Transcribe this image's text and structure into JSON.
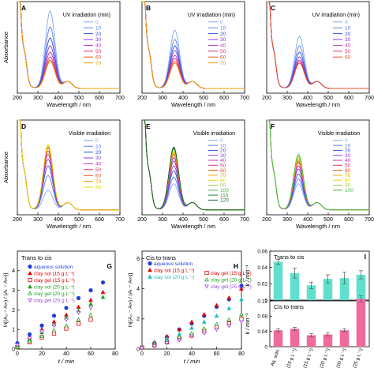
{
  "figure": {
    "row_legend_titles": [
      "UV irradiation (min)",
      "Visible irradiation"
    ],
    "axis_labels": {
      "absorbance": "Absorbance",
      "wavelength": "Wavelength / nm",
      "ln_y": "ln[(A₀ − A∞) / (Aₜ − A∞)]",
      "time": "t / min",
      "rate": "k / min⁻¹"
    },
    "bar_categories": [
      "Aq. soln.",
      "Sol (15 g L⁻¹)",
      "Gel (15 g L⁻¹)",
      "Sol (20 g L⁻¹)",
      "Gel (20 g L⁻¹)",
      "Gel (25 g L⁻¹)"
    ]
  },
  "chart_data": [
    {
      "panel": "A",
      "type": "line",
      "xlabel": "Wavelength / nm",
      "ylabel": "Absorbance",
      "xlim": [
        200,
        700
      ],
      "xticks": [
        200,
        300,
        400,
        500,
        600,
        700
      ],
      "legend_title": "UV irradiation (min)",
      "legend": [
        "0",
        "10",
        "20",
        "30",
        "40",
        "50",
        "60",
        "70"
      ],
      "series_colors": [
        "#80a8f0",
        "#5a7ef0",
        "#3050d8",
        "#8a3ae0",
        "#c030b8",
        "#e03070",
        "#e85020",
        "#f0a000"
      ],
      "peak_nm": 360,
      "peak_heights": [
        0.49,
        0.39,
        0.32,
        0.27,
        0.23,
        0.2,
        0.18,
        0.17
      ]
    },
    {
      "panel": "B",
      "type": "line",
      "xlabel": "Wavelength / nm",
      "ylabel": "",
      "xlim": [
        200,
        700
      ],
      "xticks": [
        200,
        300,
        400,
        500,
        600,
        700
      ],
      "legend_title": "UV irradiation (min)",
      "legend": [
        "0",
        "10",
        "20",
        "30",
        "40",
        "50",
        "60",
        "70"
      ],
      "series_colors": [
        "#80a8f0",
        "#5a7ef0",
        "#3050d8",
        "#8a3ae0",
        "#c030b8",
        "#e03070",
        "#e85020",
        "#f0a000"
      ],
      "peak_nm": 360,
      "peak_heights": [
        0.37,
        0.31,
        0.27,
        0.24,
        0.21,
        0.19,
        0.17,
        0.16
      ]
    },
    {
      "panel": "C",
      "type": "line",
      "xlabel": "Wavelength / nm",
      "ylabel": "",
      "xlim": [
        200,
        700
      ],
      "xticks": [
        200,
        300,
        400,
        500,
        600,
        700
      ],
      "legend_title": "UV irradiation (min)",
      "legend": [
        "0",
        "10",
        "20",
        "30",
        "40",
        "50",
        "60"
      ],
      "series_colors": [
        "#80a8f0",
        "#5a7ef0",
        "#3050d8",
        "#8a3ae0",
        "#c030b8",
        "#e03070",
        "#e85020"
      ],
      "peak_nm": 360,
      "peak_heights": [
        0.33,
        0.27,
        0.23,
        0.2,
        0.18,
        0.17,
        0.16
      ]
    },
    {
      "panel": "D",
      "type": "line",
      "xlabel": "Wavelength / nm",
      "ylabel": "Absorbance",
      "xlim": [
        200,
        700
      ],
      "xticks": [
        200,
        300,
        400,
        500,
        600,
        700
      ],
      "legend_title": "Visible irradiation",
      "legend": [
        "0",
        "10",
        "20",
        "30",
        "40",
        "50",
        "60",
        "70",
        "80"
      ],
      "series_colors": [
        "#80a8f0",
        "#5a7ef0",
        "#3050d8",
        "#8a3ae0",
        "#c030b8",
        "#e03070",
        "#e85020",
        "#f0a000",
        "#e8d800"
      ],
      "peak_nm": 350,
      "peak_heights": [
        0.12,
        0.21,
        0.27,
        0.31,
        0.34,
        0.36,
        0.38,
        0.39,
        0.4
      ]
    },
    {
      "panel": "E",
      "type": "line",
      "xlabel": "Wavelength / nm",
      "ylabel": "",
      "xlim": [
        200,
        700
      ],
      "xticks": [
        200,
        300,
        400,
        500,
        600,
        700
      ],
      "legend_title": "Visible irradiation",
      "legend": [
        "0",
        "10",
        "20",
        "30",
        "40",
        "50",
        "60",
        "70",
        "80",
        "90",
        "100",
        "110",
        "120"
      ],
      "series_colors": [
        "#80a8f0",
        "#5a7ef0",
        "#3050d8",
        "#8a3ae0",
        "#c030b8",
        "#e03070",
        "#e85020",
        "#f0a000",
        "#e8d800",
        "#9cd040",
        "#40b848",
        "#108830",
        "#206030"
      ],
      "peak_nm": 355,
      "peak_heights": [
        0.16,
        0.2,
        0.24,
        0.27,
        0.3,
        0.32,
        0.34,
        0.35,
        0.36,
        0.37,
        0.375,
        0.38,
        0.385
      ]
    },
    {
      "panel": "F",
      "type": "line",
      "xlabel": "Wavelength / nm",
      "ylabel": "",
      "xlim": [
        200,
        700
      ],
      "xticks": [
        200,
        300,
        400,
        500,
        600,
        700
      ],
      "legend_title": "Visible irradiation",
      "legend": [
        "0",
        "10",
        "20",
        "30",
        "40",
        "50",
        "60",
        "70",
        "80",
        "90",
        "100"
      ],
      "series_colors": [
        "#80a8f0",
        "#5a7ef0",
        "#3050d8",
        "#8a3ae0",
        "#c030b8",
        "#e03070",
        "#e85020",
        "#f0a000",
        "#e8d800",
        "#9cd040",
        "#40b848"
      ],
      "peak_nm": 355,
      "peak_heights": [
        0.16,
        0.19,
        0.22,
        0.25,
        0.27,
        0.29,
        0.3,
        0.31,
        0.32,
        0.33,
        0.34
      ]
    },
    {
      "panel": "G",
      "type": "scatter",
      "title": "Trans to cis",
      "xlabel": "t / min",
      "ylabel": "ln[(A₀ − A∞) / (Aₜ − A∞)]",
      "xlim": [
        0,
        80
      ],
      "ylim": [
        0,
        5
      ],
      "xticks": [
        0,
        20,
        40,
        60,
        80
      ],
      "yticks": [
        0,
        1,
        2,
        3,
        4
      ],
      "series": [
        {
          "name": "aqueous solution",
          "color": "#1f3fd8",
          "marker": "circle",
          "x": [
            0,
            10,
            20,
            30,
            40,
            50,
            60,
            70
          ],
          "y": [
            0.3,
            0.75,
            1.2,
            1.7,
            2.1,
            2.6,
            3.0,
            3.4
          ]
        },
        {
          "name": "clay sol (15 g L⁻¹)",
          "color": "#e00000",
          "marker": "triangle",
          "x": [
            0,
            10,
            20,
            30,
            40,
            50,
            60,
            70
          ],
          "y": [
            0.2,
            0.6,
            1.0,
            1.4,
            1.75,
            2.15,
            2.5,
            2.9
          ]
        },
        {
          "name": "clay gel (15 g L⁻¹)",
          "color": "#e00000",
          "marker": "square-open",
          "x": [
            0,
            10,
            20,
            30,
            40,
            50,
            60
          ],
          "y": [
            0.1,
            0.35,
            0.6,
            0.8,
            1.05,
            1.3,
            1.5
          ]
        },
        {
          "name": "clay sol (20 g L⁻¹)",
          "color": "#20a020",
          "marker": "triangle",
          "x": [
            0,
            10,
            20,
            30,
            40,
            50,
            60,
            70
          ],
          "y": [
            0.15,
            0.5,
            0.85,
            1.25,
            1.6,
            1.95,
            2.3,
            2.65
          ]
        },
        {
          "name": "clay gel (20 g L⁻¹)",
          "color": "#20a020",
          "marker": "triangle-open",
          "x": [
            0,
            10,
            20,
            30,
            40,
            50,
            60
          ],
          "y": [
            0.1,
            0.4,
            0.65,
            0.95,
            1.2,
            1.5,
            1.75
          ]
        },
        {
          "name": "clay gel (25 g L⁻¹)",
          "color": "#9a4ad8",
          "marker": "triangle-down-open",
          "x": [
            0,
            10,
            20,
            30,
            40,
            50,
            60
          ],
          "y": [
            0.2,
            0.55,
            0.9,
            1.2,
            1.5,
            1.85,
            2.1
          ]
        }
      ]
    },
    {
      "panel": "H",
      "type": "scatter",
      "title": "Cis to trans",
      "xlabel": "t / min",
      "ylabel": "ln[(A₀ − A∞) / (Aₜ − A∞)]",
      "xlim": [
        0,
        80
      ],
      "ylim": [
        0,
        6.5
      ],
      "xticks": [
        0,
        20,
        40,
        60,
        80
      ],
      "yticks": [
        0,
        2,
        4,
        6
      ],
      "series": [
        {
          "name": "aqueous solution",
          "color": "#1f3fd8",
          "marker": "circle",
          "x": [
            0,
            10,
            20,
            30,
            40,
            50,
            60,
            70,
            80
          ],
          "y": [
            0.1,
            0.4,
            0.8,
            1.3,
            1.7,
            2.2,
            2.8,
            3.3,
            4.2
          ]
        },
        {
          "name": "clay sol (15 g L⁻¹)",
          "color": "#e00000",
          "marker": "triangle",
          "x": [
            0,
            10,
            20,
            30,
            40,
            50,
            60,
            70,
            80
          ],
          "y": [
            0.1,
            0.45,
            0.85,
            1.3,
            1.8,
            2.3,
            2.9,
            3.4,
            4.0
          ]
        },
        {
          "name": "clay sol (20 g L⁻¹)",
          "color": "#20c0c0",
          "marker": "triangle",
          "x": [
            0,
            10,
            20,
            30,
            40,
            50,
            60,
            70,
            80
          ],
          "y": [
            0.15,
            0.4,
            0.7,
            1.0,
            1.4,
            1.8,
            2.2,
            2.7,
            3.3
          ]
        },
        {
          "name": "clay gel (15 g L⁻¹)",
          "color": "#e00000",
          "marker": "square-open",
          "x": [
            0,
            10,
            20,
            30,
            40,
            50,
            60,
            70,
            80
          ],
          "y": [
            0.1,
            0.25,
            0.45,
            0.7,
            0.9,
            1.2,
            1.45,
            1.7,
            2.0
          ]
        },
        {
          "name": "clay gel (20 g L⁻¹)",
          "color": "#20a020",
          "marker": "triangle-open",
          "x": [
            0,
            10,
            20,
            30,
            40,
            50,
            60,
            70,
            80
          ],
          "y": [
            0.1,
            0.3,
            0.55,
            0.8,
            1.05,
            1.35,
            1.65,
            1.95,
            2.3
          ]
        },
        {
          "name": "clay gel (25 g L⁻¹)",
          "color": "#9a4ad8",
          "marker": "triangle-down-open",
          "x": [
            0,
            10,
            20,
            30,
            40,
            50,
            60,
            70,
            80
          ],
          "y": [
            0.05,
            0.2,
            0.4,
            0.6,
            0.85,
            1.05,
            1.3,
            1.55,
            1.8
          ]
        }
      ]
    },
    {
      "panel": "I-top",
      "type": "bar",
      "title": "Trans to cis",
      "ylabel": "k / min⁻¹",
      "ylim": [
        0,
        0.06
      ],
      "yticks": [
        0,
        0.02,
        0.04,
        0.06
      ],
      "categories": [
        "Aq. soln.",
        "Sol (15 g L⁻¹)",
        "Gel (15 g L⁻¹)",
        "Sol (20 g L⁻¹)",
        "Gel (20 g L⁻¹)",
        "Gel (25 g L⁻¹)"
      ],
      "values": [
        0.047,
        0.033,
        0.018,
        0.026,
        0.027,
        0.031
      ],
      "errors": [
        0.003,
        0.006,
        0.004,
        0.005,
        0.007,
        0.005
      ],
      "bar_color": "#5ee0cc"
    },
    {
      "panel": "I-bottom",
      "type": "bar",
      "title": "Cis to trans",
      "ylabel": "k / min⁻¹",
      "ylim": [
        0,
        0.12
      ],
      "yticks": [
        0,
        0.04,
        0.08,
        0.12
      ],
      "categories": [
        "Aq. soln.",
        "Sol (15 g L⁻¹)",
        "Gel (15 g L⁻¹)",
        "Sol (20 g L⁻¹)",
        "Gel (20 g L⁻¹)",
        "Gel (25 g L⁻¹)"
      ],
      "values": [
        0.043,
        0.047,
        0.03,
        0.032,
        0.043,
        0.125
      ],
      "errors": [
        0.004,
        0.004,
        0.004,
        0.004,
        0.004,
        0.008
      ],
      "bar_color": "#f06a9c"
    }
  ]
}
